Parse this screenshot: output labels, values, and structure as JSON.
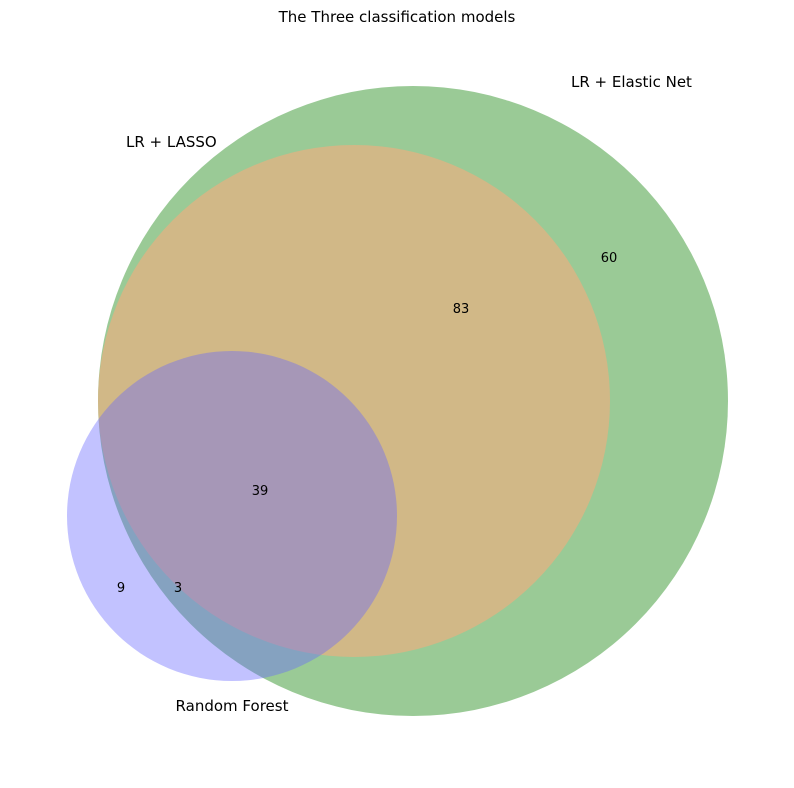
{
  "title": "The Three classification models",
  "sets": [
    {
      "key": "lasso",
      "label": "LR + LASSO"
    },
    {
      "key": "elastic",
      "label": "LR + Elastic Net"
    },
    {
      "key": "rf",
      "label": "Random Forest"
    }
  ],
  "regions": [
    {
      "key": "elastic_only",
      "sets": [
        "LR + Elastic Net"
      ],
      "count": "60"
    },
    {
      "key": "lasso_elastic",
      "sets": [
        "LR + LASSO",
        "LR + Elastic Net"
      ],
      "count": "83"
    },
    {
      "key": "all_three",
      "sets": [
        "LR + LASSO",
        "LR + Elastic Net",
        "Random Forest"
      ],
      "count": "39"
    },
    {
      "key": "rf_only",
      "sets": [
        "Random Forest"
      ],
      "count": "9"
    },
    {
      "key": "rf_elastic",
      "sets": [
        "Random Forest",
        "LR + Elastic Net"
      ],
      "count": "3"
    }
  ],
  "colors": {
    "lasso": "#e8b080",
    "elastic": "#6fb46a",
    "rf": "#6666ff"
  }
}
